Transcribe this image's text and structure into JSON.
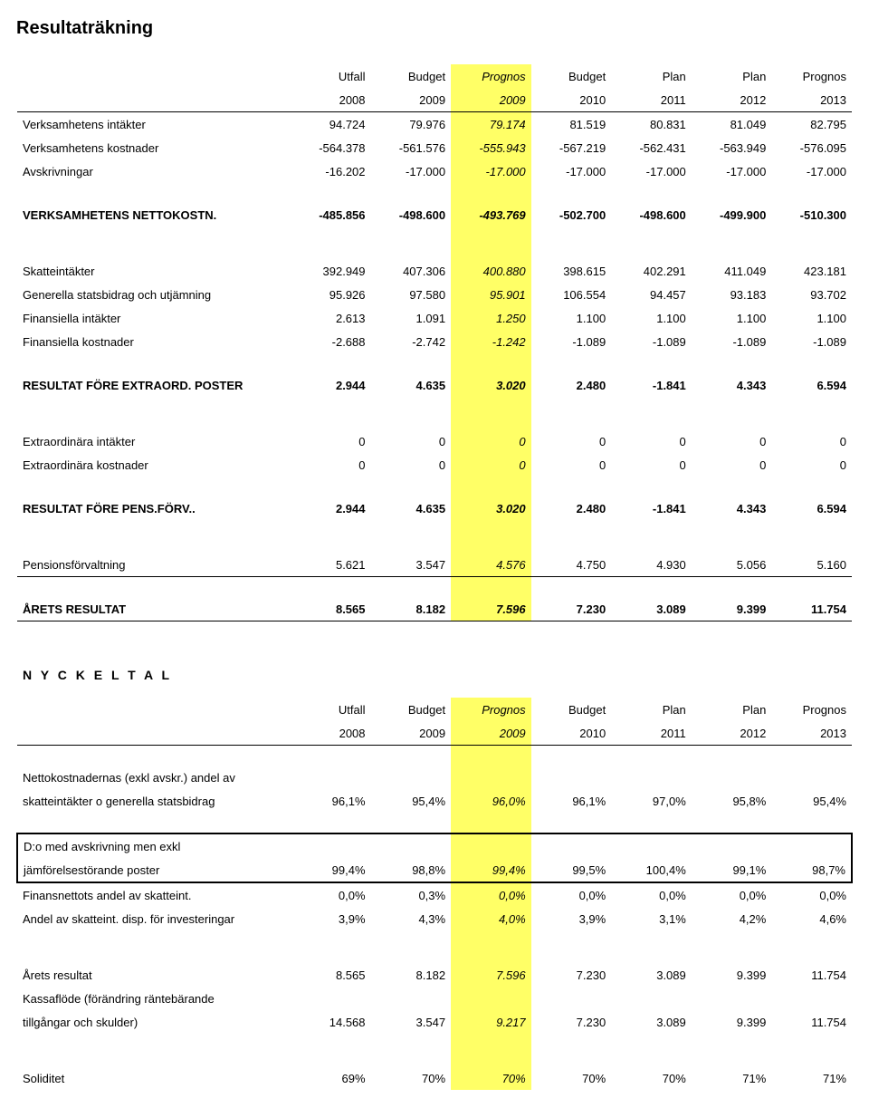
{
  "title": "Resultaträkning",
  "headers": {
    "row1": [
      "Utfall",
      "Budget",
      "Prognos",
      "Budget",
      "Plan",
      "Plan",
      "Prognos"
    ],
    "row2": [
      "2008",
      "2009",
      "2009",
      "2010",
      "2011",
      "2012",
      "2013"
    ]
  },
  "rows_top": [
    {
      "label": "Verksamhetens intäkter",
      "vals": [
        "94.724",
        "79.976",
        "79.174",
        "81.519",
        "80.831",
        "81.049",
        "82.795"
      ]
    },
    {
      "label": "Verksamhetens kostnader",
      "vals": [
        "-564.378",
        "-561.576",
        "-555.943",
        "-567.219",
        "-562.431",
        "-563.949",
        "-576.095"
      ]
    },
    {
      "label": "Avskrivningar",
      "vals": [
        "-16.202",
        "-17.000",
        "-17.000",
        "-17.000",
        "-17.000",
        "-17.000",
        "-17.000"
      ]
    }
  ],
  "nettokostn": {
    "label": "VERKSAMHETENS NETTOKOSTN.",
    "vals": [
      "-485.856",
      "-498.600",
      "-493.769",
      "-502.700",
      "-498.600",
      "-499.900",
      "-510.300"
    ]
  },
  "rows_mid": [
    {
      "label": "Skatteintäkter",
      "vals": [
        "392.949",
        "407.306",
        "400.880",
        "398.615",
        "402.291",
        "411.049",
        "423.181"
      ]
    },
    {
      "label": "Generella statsbidrag och utjämning",
      "vals": [
        "95.926",
        "97.580",
        "95.901",
        "106.554",
        "94.457",
        "93.183",
        "93.702"
      ]
    },
    {
      "label": "Finansiella intäkter",
      "vals": [
        "2.613",
        "1.091",
        "1.250",
        "1.100",
        "1.100",
        "1.100",
        "1.100"
      ]
    },
    {
      "label": "Finansiella kostnader",
      "vals": [
        "-2.688",
        "-2.742",
        "-1.242",
        "-1.089",
        "-1.089",
        "-1.089",
        "-1.089"
      ]
    }
  ],
  "resultat_extraord": {
    "label": "RESULTAT FÖRE EXTRAORD. POSTER",
    "vals": [
      "2.944",
      "4.635",
      "3.020",
      "2.480",
      "-1.841",
      "4.343",
      "6.594"
    ]
  },
  "rows_extra": [
    {
      "label": "Extraordinära intäkter",
      "vals": [
        "0",
        "0",
        "0",
        "0",
        "0",
        "0",
        "0"
      ]
    },
    {
      "label": "Extraordinära kostnader",
      "vals": [
        "0",
        "0",
        "0",
        "0",
        "0",
        "0",
        "0"
      ]
    }
  ],
  "resultat_pens": {
    "label": "RESULTAT FÖRE PENS.FÖRV..",
    "vals": [
      "2.944",
      "4.635",
      "3.020",
      "2.480",
      "-1.841",
      "4.343",
      "6.594"
    ]
  },
  "pensionsforvaltning": {
    "label": "Pensionsförvaltning",
    "vals": [
      "5.621",
      "3.547",
      "4.576",
      "4.750",
      "4.930",
      "5.056",
      "5.160"
    ]
  },
  "arets_resultat": {
    "label": "ÅRETS RESULTAT",
    "vals": [
      "8.565",
      "8.182",
      "7.596",
      "7.230",
      "3.089",
      "9.399",
      "11.754"
    ]
  },
  "nyckeltal_title": "N Y C K E L T A L",
  "nyckeltal_rows": [
    {
      "label": "Nettokostnadernas (exkl avskr.) andel av",
      "vals": [
        "",
        "",
        "",
        "",
        "",
        "",
        ""
      ]
    },
    {
      "label": "skatteintäkter o generella statsbidrag",
      "vals": [
        "96,1%",
        "95,4%",
        "96,0%",
        "96,1%",
        "97,0%",
        "95,8%",
        "95,4%"
      ]
    }
  ],
  "boxed": {
    "label1": "D:o med avskrivning men exkl",
    "label2": "jämförelsestörande poster",
    "vals": [
      "99,4%",
      "98,8%",
      "99,4%",
      "99,5%",
      "100,4%",
      "99,1%",
      "98,7%"
    ]
  },
  "nyckeltal_rows2": [
    {
      "label": "Finansnettots andel av skatteint.",
      "vals": [
        "0,0%",
        "0,3%",
        "0,0%",
        "0,0%",
        "0,0%",
        "0,0%",
        "0,0%"
      ]
    },
    {
      "label": "Andel av skatteint. disp. för investeringar",
      "vals": [
        "3,9%",
        "4,3%",
        "4,0%",
        "3,9%",
        "3,1%",
        "4,2%",
        "4,6%"
      ]
    }
  ],
  "nyckeltal_rows3": [
    {
      "label": "Årets resultat",
      "vals": [
        "8.565",
        "8.182",
        "7.596",
        "7.230",
        "3.089",
        "9.399",
        "11.754"
      ]
    },
    {
      "label": "Kassaflöde (förändring räntebärande",
      "vals": [
        "",
        "",
        "",
        "",
        "",
        "",
        ""
      ]
    },
    {
      "label": "tillgångar och skulder)",
      "vals": [
        "14.568",
        "3.547",
        "9.217",
        "7.230",
        "3.089",
        "9.399",
        "11.754"
      ]
    }
  ],
  "soliditet": {
    "label": "Soliditet",
    "vals": [
      "69%",
      "70%",
      "70%",
      "70%",
      "70%",
      "71%",
      "71%"
    ]
  },
  "col_styles": {
    "prognos_col_index": 2,
    "italic_prognos": true,
    "yellow_bg": "#ffff66"
  }
}
